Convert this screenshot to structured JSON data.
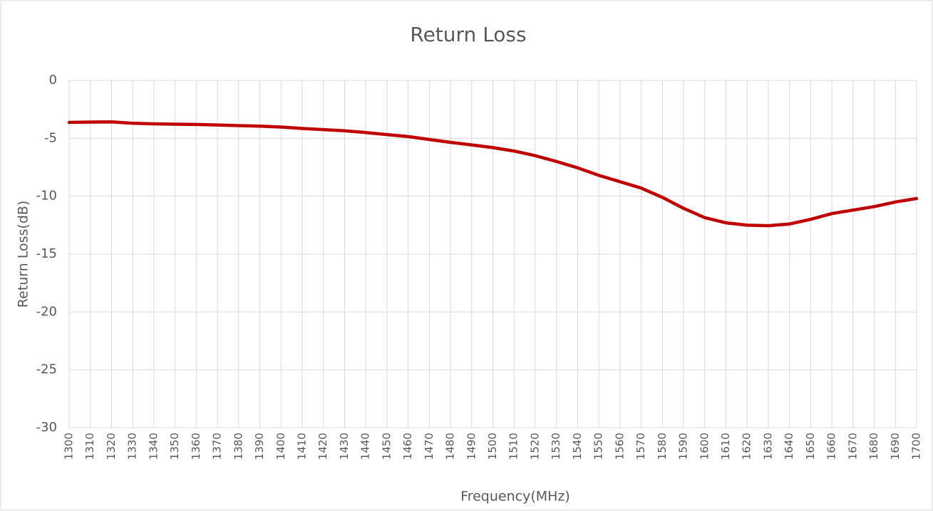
{
  "chart_data": {
    "type": "line",
    "title": "Return Loss",
    "x_label": "Frequency(MHz)",
    "y_label": "Return Loss(dB)",
    "categories": [
      "1300",
      "1310",
      "1320",
      "1330",
      "1340",
      "1350",
      "1360",
      "1370",
      "1380",
      "1390",
      "1400",
      "1410",
      "1420",
      "1430",
      "1440",
      "1450",
      "1460",
      "1470",
      "1480",
      "1490",
      "1500",
      "1510",
      "1520",
      "1530",
      "1540",
      "1550",
      "1560",
      "1570",
      "1580",
      "1590",
      "1600",
      "1610",
      "1620",
      "1630",
      "1640",
      "1650",
      "1660",
      "1670",
      "1680",
      "1690",
      "1700"
    ],
    "series": [
      {
        "name": "Return Loss",
        "color": "#c00000",
        "values": [
          -3.63,
          -3.6,
          -3.58,
          -3.7,
          -3.75,
          -3.78,
          -3.8,
          -3.85,
          -3.9,
          -3.95,
          -4.03,
          -4.15,
          -4.25,
          -4.35,
          -4.5,
          -4.68,
          -4.85,
          -5.1,
          -5.35,
          -5.57,
          -5.8,
          -6.1,
          -6.5,
          -7.0,
          -7.55,
          -8.2,
          -8.75,
          -9.3,
          -10.1,
          -11.05,
          -11.85,
          -12.3,
          -12.5,
          -12.55,
          -12.4,
          -12.0,
          -11.5,
          -11.2,
          -10.9,
          -10.5,
          -10.2
        ]
      }
    ],
    "ylim": [
      -30,
      0
    ],
    "yticks": [
      0,
      -5,
      -10,
      -15,
      -20,
      -25,
      -30
    ],
    "grid": true
  }
}
